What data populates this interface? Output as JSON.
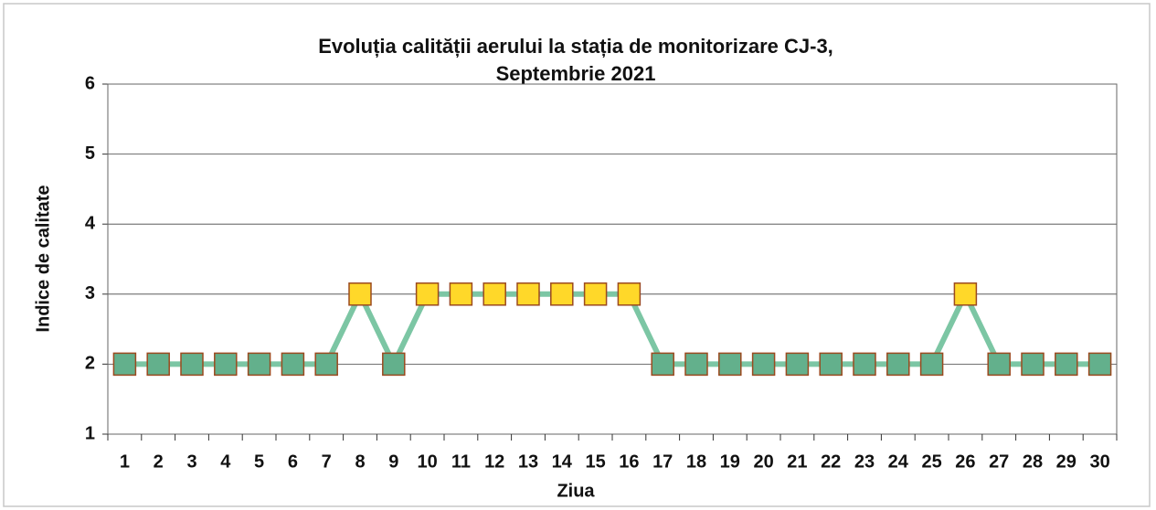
{
  "chart_data": {
    "type": "line",
    "title": [
      "Evoluția calității aerului la stația de monitorizare CJ-3,",
      "Septembrie 2021"
    ],
    "xlabel": "Ziua",
    "ylabel": "Indice de calitate",
    "categories": [
      "1",
      "2",
      "3",
      "4",
      "5",
      "6",
      "7",
      "8",
      "9",
      "10",
      "11",
      "12",
      "13",
      "14",
      "15",
      "16",
      "17",
      "18",
      "19",
      "20",
      "21",
      "22",
      "23",
      "24",
      "25",
      "26",
      "27",
      "28",
      "29",
      "30"
    ],
    "series": [
      {
        "color": "#7cc6a4",
        "values": [
          2,
          2,
          2,
          2,
          2,
          2,
          2,
          3,
          2,
          3,
          3,
          3,
          3,
          3,
          3,
          3,
          2,
          2,
          2,
          2,
          2,
          2,
          2,
          2,
          2,
          3,
          2,
          2,
          2,
          2
        ],
        "marker_colors": [
          "#63b08c",
          "#63b08c",
          "#63b08c",
          "#63b08c",
          "#63b08c",
          "#63b08c",
          "#63b08c",
          "#ffd829",
          "#63b08c",
          "#ffd829",
          "#ffd829",
          "#ffd829",
          "#ffd829",
          "#ffd829",
          "#ffd829",
          "#ffd829",
          "#63b08c",
          "#63b08c",
          "#63b08c",
          "#63b08c",
          "#63b08c",
          "#63b08c",
          "#63b08c",
          "#63b08c",
          "#63b08c",
          "#ffd829",
          "#63b08c",
          "#63b08c",
          "#63b08c",
          "#63b08c"
        ],
        "marker_edge": "#9b4a1f"
      }
    ],
    "ylim": [
      1,
      6
    ],
    "yticks": [
      1,
      2,
      3,
      4,
      5,
      6
    ],
    "grid": true
  }
}
